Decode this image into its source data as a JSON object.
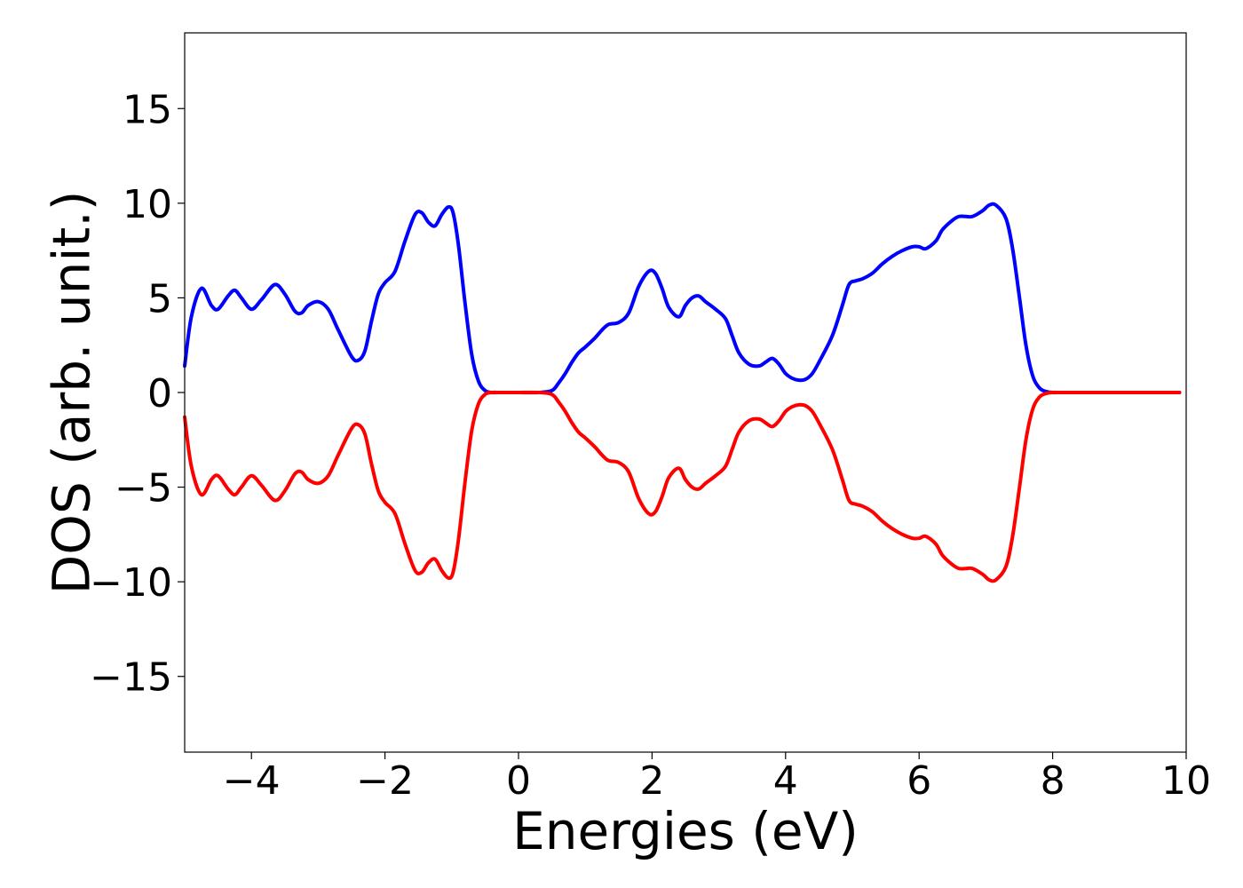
{
  "chart_data": {
    "type": "line",
    "title": "",
    "xlabel": "Energies (eV)",
    "ylabel": "DOS (arb. unit.)",
    "xlim": [
      -5,
      10
    ],
    "ylim": [
      -19,
      19
    ],
    "grid": false,
    "x_ticks": [
      -4,
      -2,
      0,
      2,
      4,
      6,
      8,
      10
    ],
    "x_tick_labels": [
      "−4",
      "−2",
      "0",
      "2",
      "4",
      "6",
      "8",
      "10"
    ],
    "y_ticks": [
      15,
      10,
      5,
      0,
      -5,
      -10,
      -15
    ],
    "y_tick_labels": [
      "15",
      "10",
      "5",
      "0",
      "−5",
      "−10",
      "−15"
    ],
    "series": [
      {
        "color": "#0000ff",
        "x": [
          -5.0,
          -4.9,
          -4.75,
          -4.6,
          -4.5,
          -4.35,
          -4.25,
          -4.15,
          -4.0,
          -3.85,
          -3.65,
          -3.5,
          -3.35,
          -3.25,
          -3.15,
          -3.0,
          -2.85,
          -2.7,
          -2.5,
          -2.4,
          -2.3,
          -2.2,
          -2.1,
          -2.0,
          -1.85,
          -1.7,
          -1.55,
          -1.45,
          -1.35,
          -1.25,
          -1.15,
          -1.05,
          -0.98,
          -0.9,
          -0.8,
          -0.7,
          -0.6,
          -0.5,
          -0.4,
          -0.3,
          0.0,
          0.3,
          0.5,
          0.6,
          0.7,
          0.8,
          0.9,
          1.0,
          1.15,
          1.25,
          1.35,
          1.5,
          1.65,
          1.8,
          1.95,
          2.05,
          2.15,
          2.25,
          2.4,
          2.5,
          2.6,
          2.7,
          2.8,
          2.95,
          3.1,
          3.2,
          3.3,
          3.45,
          3.6,
          3.7,
          3.8,
          3.9,
          4.0,
          4.1,
          4.2,
          4.3,
          4.4,
          4.5,
          4.7,
          4.85,
          4.95,
          5.05,
          5.15,
          5.3,
          5.45,
          5.6,
          5.75,
          5.9,
          6.0,
          6.1,
          6.25,
          6.35,
          6.5,
          6.6,
          6.7,
          6.8,
          6.95,
          7.05,
          7.15,
          7.3,
          7.4,
          7.5,
          7.6,
          7.7,
          7.8,
          7.9,
          8.0,
          8.1,
          8.25,
          8.5,
          9.0,
          9.5,
          9.9
        ],
        "values": [
          1.4,
          4.0,
          5.5,
          4.6,
          4.4,
          5.1,
          5.4,
          5.0,
          4.4,
          4.9,
          5.7,
          5.2,
          4.3,
          4.2,
          4.6,
          4.8,
          4.4,
          3.3,
          1.9,
          1.7,
          2.2,
          3.8,
          5.2,
          5.8,
          6.4,
          8.0,
          9.4,
          9.5,
          9.0,
          8.8,
          9.4,
          9.8,
          9.5,
          7.8,
          4.7,
          2.0,
          0.6,
          0.1,
          0.0,
          0.0,
          0.0,
          0.0,
          0.1,
          0.5,
          1.0,
          1.6,
          2.1,
          2.4,
          2.9,
          3.3,
          3.6,
          3.7,
          4.2,
          5.6,
          6.4,
          6.3,
          5.5,
          4.5,
          4.0,
          4.6,
          5.0,
          5.1,
          4.8,
          4.4,
          3.9,
          3.0,
          2.1,
          1.5,
          1.4,
          1.6,
          1.8,
          1.5,
          1.0,
          0.75,
          0.65,
          0.7,
          1.0,
          1.6,
          3.0,
          4.6,
          5.7,
          5.9,
          6.0,
          6.3,
          6.8,
          7.2,
          7.5,
          7.7,
          7.7,
          7.6,
          8.0,
          8.6,
          9.1,
          9.3,
          9.3,
          9.3,
          9.6,
          9.9,
          9.9,
          9.2,
          7.6,
          5.1,
          2.5,
          0.9,
          0.25,
          0.05,
          0.0,
          0.0,
          0.0,
          0.0,
          0.0,
          0.0,
          0.0
        ]
      },
      {
        "color": "#ff0000",
        "x": [
          -5.0,
          -4.9,
          -4.75,
          -4.6,
          -4.5,
          -4.35,
          -4.25,
          -4.15,
          -4.0,
          -3.85,
          -3.65,
          -3.5,
          -3.35,
          -3.25,
          -3.15,
          -3.0,
          -2.85,
          -2.7,
          -2.5,
          -2.4,
          -2.3,
          -2.2,
          -2.1,
          -2.0,
          -1.85,
          -1.7,
          -1.55,
          -1.45,
          -1.35,
          -1.25,
          -1.15,
          -1.05,
          -0.98,
          -0.9,
          -0.8,
          -0.7,
          -0.6,
          -0.5,
          -0.4,
          -0.3,
          0.0,
          0.3,
          0.5,
          0.6,
          0.7,
          0.8,
          0.9,
          1.0,
          1.15,
          1.25,
          1.35,
          1.5,
          1.65,
          1.8,
          1.95,
          2.05,
          2.15,
          2.25,
          2.4,
          2.5,
          2.6,
          2.7,
          2.8,
          2.95,
          3.1,
          3.2,
          3.3,
          3.45,
          3.6,
          3.7,
          3.8,
          3.9,
          4.0,
          4.1,
          4.2,
          4.3,
          4.4,
          4.5,
          4.7,
          4.85,
          4.95,
          5.05,
          5.15,
          5.3,
          5.45,
          5.6,
          5.75,
          5.9,
          6.0,
          6.1,
          6.25,
          6.35,
          6.5,
          6.6,
          6.7,
          6.8,
          6.95,
          7.05,
          7.15,
          7.3,
          7.4,
          7.5,
          7.6,
          7.7,
          7.8,
          7.9,
          8.0,
          8.1,
          8.25,
          8.5,
          9.0,
          9.5,
          9.9
        ],
        "values": [
          -1.3,
          -3.9,
          -5.4,
          -4.6,
          -4.4,
          -5.1,
          -5.4,
          -5.0,
          -4.4,
          -4.9,
          -5.7,
          -5.2,
          -4.3,
          -4.2,
          -4.6,
          -4.8,
          -4.4,
          -3.3,
          -1.9,
          -1.7,
          -2.2,
          -3.8,
          -5.2,
          -5.8,
          -6.4,
          -8.0,
          -9.4,
          -9.5,
          -9.0,
          -8.8,
          -9.4,
          -9.8,
          -9.5,
          -7.8,
          -4.7,
          -2.0,
          -0.6,
          -0.1,
          0.0,
          0.0,
          0.0,
          0.0,
          -0.1,
          -0.5,
          -1.0,
          -1.6,
          -2.1,
          -2.4,
          -2.9,
          -3.3,
          -3.6,
          -3.7,
          -4.2,
          -5.6,
          -6.4,
          -6.3,
          -5.5,
          -4.5,
          -4.0,
          -4.6,
          -5.0,
          -5.1,
          -4.8,
          -4.4,
          -3.9,
          -3.0,
          -2.1,
          -1.5,
          -1.4,
          -1.6,
          -1.8,
          -1.5,
          -1.0,
          -0.75,
          -0.65,
          -0.7,
          -1.0,
          -1.6,
          -3.0,
          -4.6,
          -5.7,
          -5.9,
          -6.0,
          -6.3,
          -6.8,
          -7.2,
          -7.5,
          -7.7,
          -7.7,
          -7.6,
          -8.0,
          -8.6,
          -9.1,
          -9.3,
          -9.3,
          -9.3,
          -9.6,
          -9.9,
          -9.9,
          -9.2,
          -7.6,
          -5.1,
          -2.5,
          -0.9,
          -0.25,
          -0.05,
          0.0,
          0.0,
          0.0,
          0.0,
          0.0,
          0.0,
          0.0
        ]
      }
    ]
  }
}
